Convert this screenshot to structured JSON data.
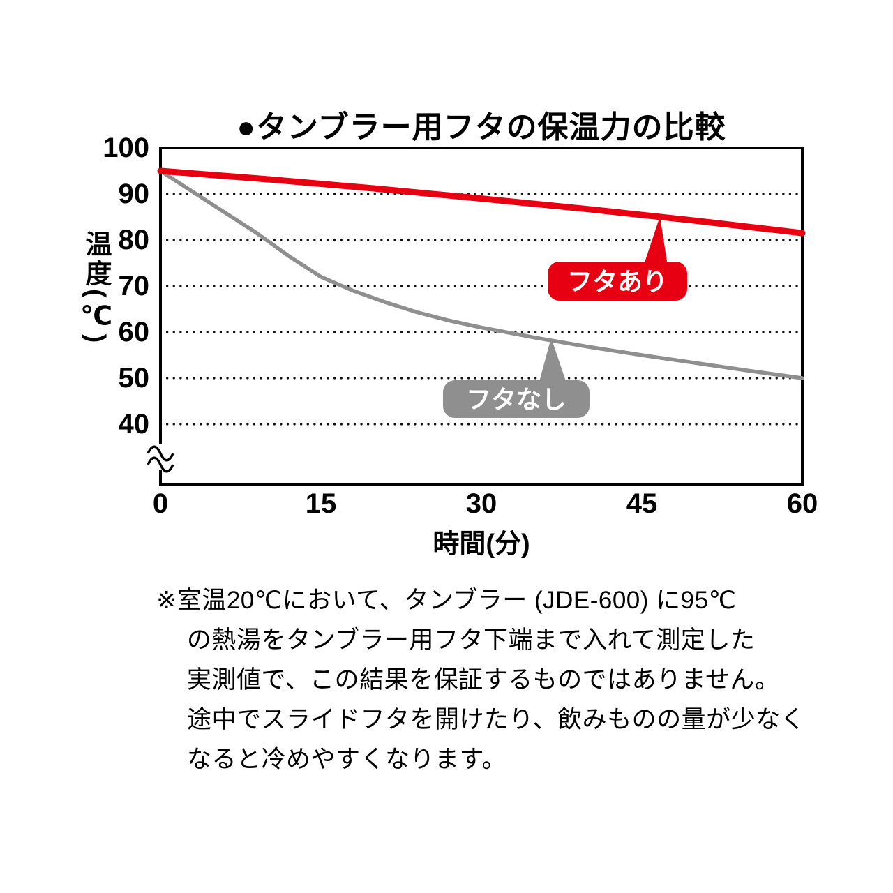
{
  "page": {
    "background": "#ffffff"
  },
  "chart_data": {
    "type": "line",
    "title": "●タンブラー用フタの保温力の比較",
    "xlabel": "時間(分)",
    "ylabel": "温度(℃)",
    "x_ticks": [
      "0",
      "15",
      "30",
      "45",
      "60"
    ],
    "y_ticks": [
      "100",
      "90",
      "80",
      "70",
      "60",
      "50",
      "40"
    ],
    "x_range": [
      0,
      60
    ],
    "y_range": [
      40,
      100
    ],
    "axis_break_below": 40,
    "grid": "dotted-horizontal",
    "legend_position": "inline-callouts",
    "series": [
      {
        "name": "フタあり",
        "color": "#e60012",
        "x": [
          0,
          10,
          20,
          30,
          40,
          50,
          60
        ],
        "y": [
          95,
          93.2,
          91.2,
          89,
          86.7,
          84.2,
          81.5
        ]
      },
      {
        "name": "フタなし",
        "color": "#8f8f8f",
        "x": [
          0,
          3,
          6,
          9,
          12,
          15,
          18,
          21,
          24,
          27,
          30,
          35,
          40,
          45,
          50,
          55,
          60
        ],
        "y": [
          95,
          90.5,
          86,
          81.5,
          76.5,
          72,
          69,
          66.5,
          64.3,
          62.5,
          61,
          58.8,
          56.8,
          55,
          53.3,
          51.6,
          50
        ]
      }
    ]
  },
  "footnote": {
    "lines": [
      "※室温20℃において、タンブラー (JDE-600) に95℃",
      "の熱湯をタンブラー用フタ下端まで入れて測定した",
      "実測値で、この結果を保証するものではありません。",
      "途中でスライドフタを開けたり、飲みものの量が少なく",
      "なると冷めやすくなります。"
    ]
  }
}
